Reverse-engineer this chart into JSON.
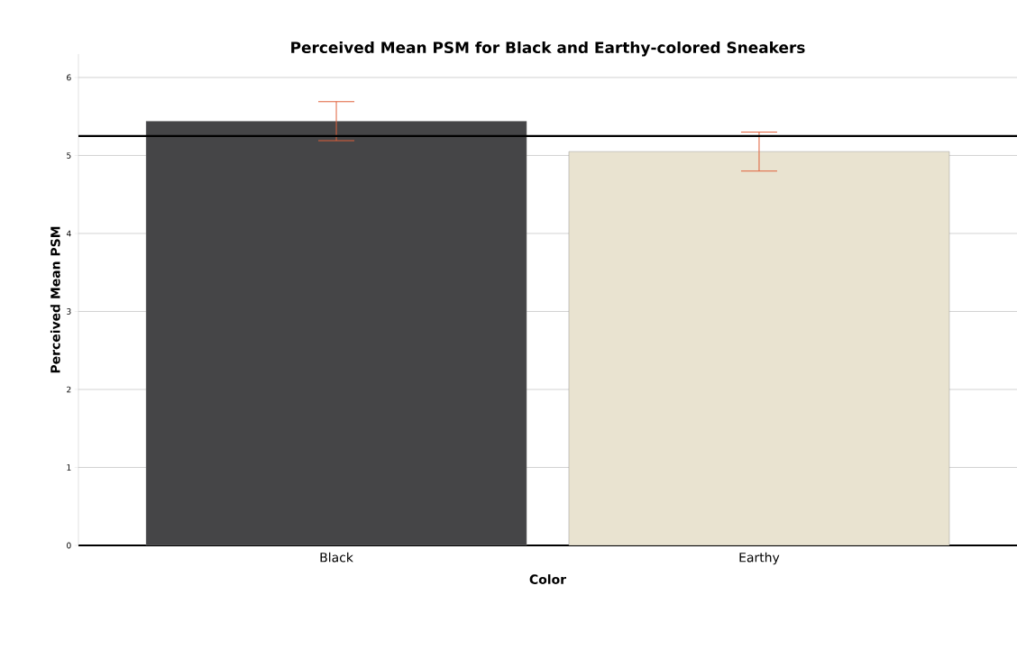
{
  "chart_data": {
    "type": "bar",
    "title": "Perceived Mean PSM for Black and Earthy-colored Sneakers",
    "xlabel": "Color",
    "ylabel": "Perceived Mean PSM",
    "categories": [
      "Black",
      "Earthy"
    ],
    "values": [
      5.44,
      5.05
    ],
    "colors": [
      "#454547",
      "#e9e3d0"
    ],
    "errors": [
      0.25,
      0.25
    ],
    "ref_lines": [
      {
        "axis": "y",
        "value": 5.25,
        "color": "#000000"
      }
    ],
    "ylim": [
      0,
      6.3
    ],
    "yticks": [
      0,
      1,
      2,
      3,
      4,
      5,
      6
    ],
    "grid": "y"
  }
}
